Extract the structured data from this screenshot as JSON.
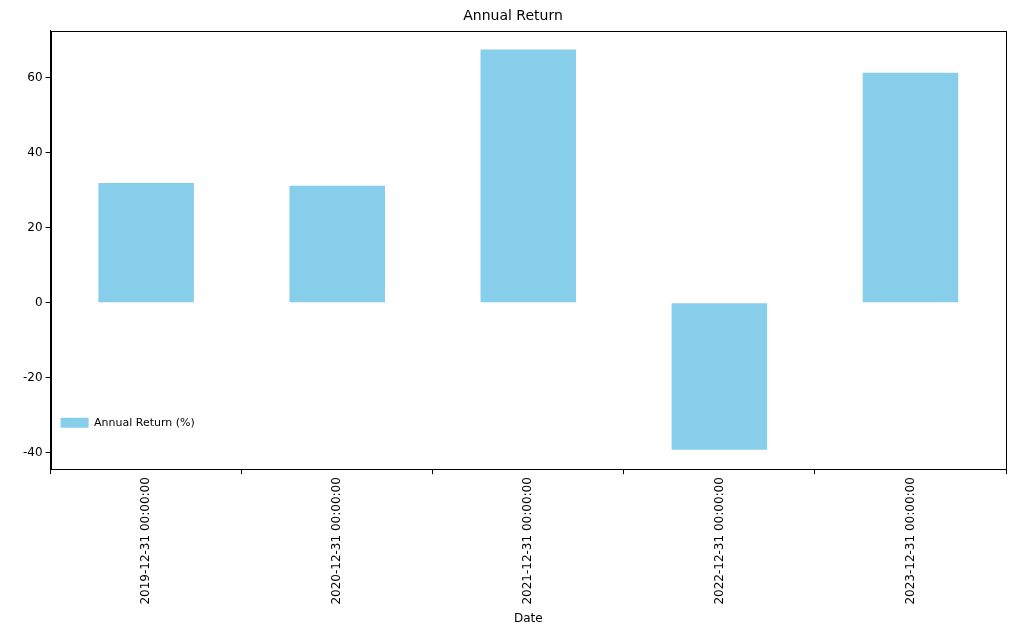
{
  "chart_data": {
    "type": "bar",
    "title": "Annual Return",
    "x_label": "Date",
    "categories": [
      "2019-12-31 00:00:00",
      "2020-12-31 00:00:00",
      "2021-12-31 00:00:00",
      "2022-12-31 00:00:00",
      "2023-12-31 00:00:00"
    ],
    "series": [
      {
        "name": "Annual Return (%)",
        "color": "#87ceeb",
        "values": [
          31.9,
          31.2,
          67.5,
          -39.2,
          61.3
        ]
      }
    ],
    "ylim": [
      -44.4,
      72.5
    ],
    "yticks": [
      -40,
      -20,
      0,
      20,
      40,
      60
    ],
    "grid": false,
    "legend": "upper right"
  }
}
